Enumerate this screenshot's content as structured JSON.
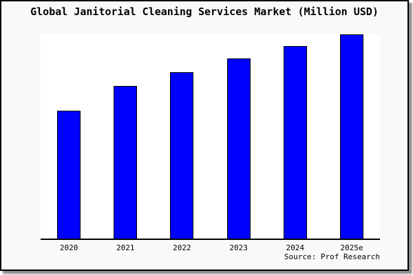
{
  "page": {
    "title": "Global Janitorial Cleaning Services Market (Million USD)",
    "source": "Source: Prof Research"
  },
  "chart_data": {
    "type": "bar",
    "title": "Global Janitorial Cleaning Services Market (Million USD)",
    "categories": [
      "2020",
      "2021",
      "2022",
      "2023",
      "2024",
      "2025e"
    ],
    "values": [
      62.5,
      74.9,
      81.4,
      88.1,
      94.2,
      100
    ],
    "values_note": "No y-axis ticks, labels or gridlines are shown in the image; values are estimated relative bar heights normalized so the tallest bar (2025e) = 100.",
    "xlabel": "",
    "ylabel": "",
    "ylim": [
      0,
      100
    ],
    "grid": false,
    "legend": null,
    "annotations": [
      "Source: Prof Research"
    ],
    "bar_fill_color": "#0000ff",
    "bar_border_color": "#000000"
  },
  "colors": {
    "page_background": "#f9f9f9",
    "plot_background": "#ffffff",
    "border": "#000000",
    "axis": "#000000",
    "bar_fill": "#0000ff",
    "text": "#000000"
  }
}
